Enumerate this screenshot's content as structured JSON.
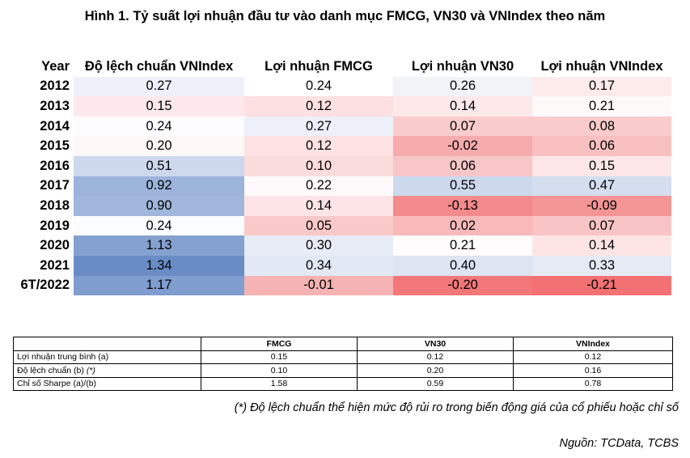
{
  "title": "Hình 1. Tỷ suất lợi nhuận đầu tư vào danh mục FMCG, VN30 và VNIndex theo năm",
  "heatmap": {
    "headers": [
      "Year",
      "Độ lệch chuẩn VNIndex",
      "Lợi nhuận FMCG",
      "Lợi nhuận VN30",
      "Lợi nhuận VNIndex"
    ],
    "rows": [
      {
        "year": "2012",
        "values": [
          "0.27",
          "0.24",
          "0.26",
          "0.17"
        ],
        "colors": [
          "#eef1f9",
          "#ffffff",
          "#f1f3f9",
          "#fdeaea"
        ]
      },
      {
        "year": "2013",
        "values": [
          "0.15",
          "0.12",
          "0.14",
          "0.21"
        ],
        "colors": [
          "#fde9ec",
          "#fde0e1",
          "#fde8ea",
          "#fefafa"
        ]
      },
      {
        "year": "2014",
        "values": [
          "0.24",
          "0.27",
          "0.07",
          "0.08"
        ],
        "colors": [
          "#fcfcff",
          "#edf0f8",
          "#f9cbcc",
          "#f9cbcb"
        ]
      },
      {
        "year": "2015",
        "values": [
          "0.20",
          "0.12",
          "-0.02",
          "0.06"
        ],
        "colors": [
          "#fef7f8",
          "#fde2e3",
          "#f6abac",
          "#f8c0c0"
        ]
      },
      {
        "year": "2016",
        "values": [
          "0.51",
          "0.10",
          "0.06",
          "0.15"
        ],
        "colors": [
          "#cdd8ec",
          "#fbdcdd",
          "#f8c6c6",
          "#fde6e7"
        ]
      },
      {
        "year": "2017",
        "values": [
          "0.92",
          "0.22",
          "0.55",
          "0.47"
        ],
        "colors": [
          "#9cb3da",
          "#fefafb",
          "#ccd8ec",
          "#d5deef"
        ]
      },
      {
        "year": "2018",
        "values": [
          "0.90",
          "0.14",
          "-0.13",
          "-0.09"
        ],
        "colors": [
          "#a0b6db",
          "#fde4e6",
          "#f38a8b",
          "#f39495"
        ]
      },
      {
        "year": "2019",
        "values": [
          "0.24",
          "0.05",
          "0.02",
          "0.07"
        ],
        "colors": [
          "#fbfcfe",
          "#f9c8c9",
          "#f7b9ba",
          "#f9c4c5"
        ]
      },
      {
        "year": "2020",
        "values": [
          "1.13",
          "0.30",
          "0.21",
          "0.14"
        ],
        "colors": [
          "#85a1d0",
          "#e8ecf6",
          "#fefcfc",
          "#fde5e6"
        ]
      },
      {
        "year": "2021",
        "values": [
          "1.34",
          "0.34",
          "0.40",
          "0.33"
        ],
        "colors": [
          "#6a8cc5",
          "#e2e8f4",
          "#dde4f2",
          "#e5eaf5"
        ]
      },
      {
        "year": "6T/2022",
        "values": [
          "1.17",
          "-0.01",
          "-0.20",
          "-0.21"
        ],
        "colors": [
          "#809dcf",
          "#f6b3b4",
          "#f27778",
          "#f37173"
        ]
      }
    ]
  },
  "summary": {
    "headers": [
      "",
      "FMCG",
      "VN30",
      "VNIndex"
    ],
    "rows": [
      {
        "label": "Lợi nhuận trung bình (a)",
        "values": [
          "0.15",
          "0.12",
          "0.12"
        ]
      },
      {
        "label": "Độ lệch chuẩn (b)",
        "label_suffix": "(*)",
        "values": [
          "0.10",
          "0.20",
          "0.16"
        ]
      },
      {
        "label": "Chỉ số Sharpe (a)/(b)",
        "values": [
          "1.58",
          "0.59",
          "0.78"
        ]
      }
    ]
  },
  "note": "(*) Độ lệch chuẩn thể hiện mức độ rủi ro trong biến động giá của cổ phiếu hoặc chỉ số",
  "source": "Nguồn: TCData, TCBS"
}
